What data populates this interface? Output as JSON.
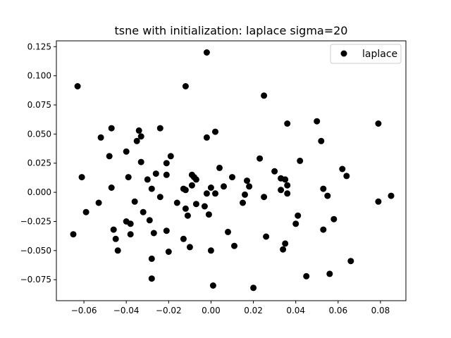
{
  "chart_data": {
    "type": "scatter",
    "title": "tsne with initialization: laplace sigma=20",
    "xlabel": "",
    "ylabel": "",
    "xlim": [
      -0.073,
      0.092
    ],
    "ylim": [
      -0.093,
      0.13
    ],
    "xticks": [
      -0.06,
      -0.04,
      -0.02,
      0.0,
      0.02,
      0.04,
      0.06,
      0.08
    ],
    "xtick_labels": [
      "−0.06",
      "−0.04",
      "−0.02",
      "0.00",
      "0.02",
      "0.04",
      "0.06",
      "0.08"
    ],
    "yticks": [
      -0.075,
      -0.05,
      -0.025,
      0.0,
      0.025,
      0.05,
      0.075,
      0.1,
      0.125
    ],
    "ytick_labels": [
      "−0.075",
      "−0.050",
      "−0.025",
      "0.000",
      "0.025",
      "0.050",
      "0.075",
      "0.100",
      "0.125"
    ],
    "grid": false,
    "legend_position": "top-right",
    "series": [
      {
        "name": "laplace",
        "color": "#000000",
        "points": [
          [
            -0.065,
            -0.036
          ],
          [
            -0.063,
            0.091
          ],
          [
            -0.061,
            0.013
          ],
          [
            -0.059,
            -0.017
          ],
          [
            -0.053,
            -0.009
          ],
          [
            -0.052,
            0.047
          ],
          [
            -0.048,
            0.031
          ],
          [
            -0.047,
            0.055
          ],
          [
            -0.047,
            0.004
          ],
          [
            -0.046,
            -0.032
          ],
          [
            -0.045,
            -0.04
          ],
          [
            -0.044,
            -0.05
          ],
          [
            -0.04,
            0.035
          ],
          [
            -0.04,
            -0.025
          ],
          [
            -0.039,
            0.013
          ],
          [
            -0.038,
            -0.027
          ],
          [
            -0.038,
            -0.036
          ],
          [
            -0.036,
            -0.008
          ],
          [
            -0.035,
            0.044
          ],
          [
            -0.034,
            0.053
          ],
          [
            -0.033,
            0.048
          ],
          [
            -0.033,
            0.026
          ],
          [
            -0.032,
            -0.017
          ],
          [
            -0.03,
            0.011
          ],
          [
            -0.029,
            -0.024
          ],
          [
            -0.028,
            -0.057
          ],
          [
            -0.028,
            -0.074
          ],
          [
            -0.028,
            0.003
          ],
          [
            -0.027,
            -0.035
          ],
          [
            -0.026,
            0.016
          ],
          [
            -0.024,
            0.055
          ],
          [
            -0.024,
            -0.004
          ],
          [
            -0.021,
            0.015
          ],
          [
            -0.021,
            0.025
          ],
          [
            -0.021,
            -0.033
          ],
          [
            -0.02,
            -0.051
          ],
          [
            -0.019,
            0.031
          ],
          [
            -0.016,
            -0.009
          ],
          [
            -0.013,
            0.003
          ],
          [
            -0.013,
            -0.04
          ],
          [
            -0.012,
            0.002
          ],
          [
            -0.012,
            -0.014
          ],
          [
            -0.012,
            0.091
          ],
          [
            -0.011,
            -0.02
          ],
          [
            -0.01,
            -0.047
          ],
          [
            -0.009,
            0.015
          ],
          [
            -0.009,
            0.006
          ],
          [
            -0.008,
            0.013
          ],
          [
            -0.007,
            -0.01
          ],
          [
            -0.007,
            0.011
          ],
          [
            -0.003,
            -0.012
          ],
          [
            -0.002,
            -0.001
          ],
          [
            -0.002,
            0.12
          ],
          [
            -0.002,
            0.047
          ],
          [
            -0.001,
            -0.019
          ],
          [
            0.0,
            0.004
          ],
          [
            0.0,
            -0.05
          ],
          [
            0.001,
            -0.08
          ],
          [
            0.002,
            -0.001
          ],
          [
            0.002,
            0.052
          ],
          [
            0.004,
            0.021
          ],
          [
            0.006,
            0.005
          ],
          [
            0.008,
            -0.034
          ],
          [
            0.01,
            0.013
          ],
          [
            0.011,
            -0.046
          ],
          [
            0.015,
            -0.009
          ],
          [
            0.016,
            -0.002
          ],
          [
            0.017,
            0.01
          ],
          [
            0.018,
            0.005
          ],
          [
            0.02,
            -0.082
          ],
          [
            0.023,
            0.029
          ],
          [
            0.025,
            0.083
          ],
          [
            0.025,
            -0.004
          ],
          [
            0.026,
            -0.038
          ],
          [
            0.03,
            0.018
          ],
          [
            0.033,
            0.012
          ],
          [
            0.033,
            0.002
          ],
          [
            0.034,
            -0.049
          ],
          [
            0.035,
            0.011
          ],
          [
            0.035,
            -0.044
          ],
          [
            0.036,
            0.006
          ],
          [
            0.036,
            -0.001
          ],
          [
            0.036,
            0.059
          ],
          [
            0.04,
            -0.027
          ],
          [
            0.041,
            -0.02
          ],
          [
            0.042,
            0.027
          ],
          [
            0.045,
            -0.072
          ],
          [
            0.05,
            0.061
          ],
          [
            0.052,
            0.044
          ],
          [
            0.053,
            0.003
          ],
          [
            0.053,
            -0.032
          ],
          [
            0.055,
            -0.003
          ],
          [
            0.056,
            -0.07
          ],
          [
            0.058,
            -0.023
          ],
          [
            0.062,
            0.02
          ],
          [
            0.064,
            0.014
          ],
          [
            0.066,
            -0.059
          ],
          [
            0.079,
            0.059
          ],
          [
            0.079,
            -0.008
          ],
          [
            0.085,
            -0.003
          ]
        ]
      }
    ]
  }
}
